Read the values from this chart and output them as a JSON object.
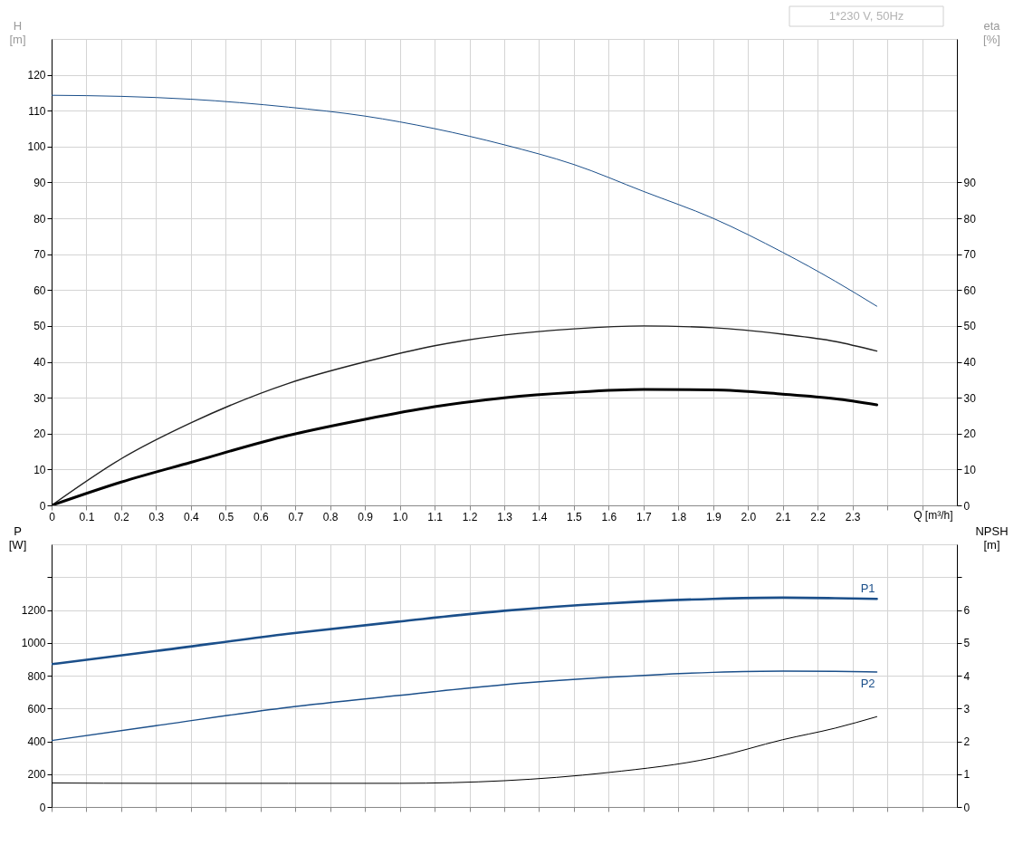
{
  "chart_data": [
    {
      "type": "line",
      "ylabel": "H [m]",
      "y2label": "eta [%]",
      "xlabel": "Q [m³/h]",
      "annotations": [
        "1*230 V, 50Hz"
      ],
      "grid": true,
      "x": [
        0,
        0.2,
        0.4,
        0.68,
        0.9,
        1.1,
        1.3,
        1.5,
        1.7,
        1.9,
        2.1,
        2.25,
        2.37
      ],
      "xlim": [
        0,
        2.6
      ],
      "xticks": [
        0,
        0.1,
        0.2,
        0.3,
        0.4,
        0.5,
        0.6,
        0.7,
        0.8,
        0.9,
        {
          "value": 1,
          "label": "1.0"
        },
        1.1,
        1.2,
        1.3,
        1.4,
        1.5,
        1.6,
        1.7,
        1.8,
        1.9,
        {
          "value": 2,
          "label": "2.0"
        },
        2.1,
        2.2,
        2.3,
        {
          "value": 2.4,
          "label": null
        },
        {
          "value": 2.5,
          "label": null
        }
      ],
      "ylim": [
        0,
        130
      ],
      "yticks": [
        0,
        10,
        20,
        30,
        40,
        50,
        60,
        70,
        80,
        90,
        100,
        110,
        120
      ],
      "y2lim": [
        0,
        130
      ],
      "y2ticks": [
        0,
        10,
        20,
        30,
        40,
        50,
        60,
        70,
        80,
        90
      ],
      "series": [
        {
          "color": "#1b4f8a",
          "values": [
            114.3,
            114,
            113.2,
            111,
            108.5,
            105,
            100.5,
            95,
            87.5,
            80,
            70.5,
            62.5,
            55.5
          ]
        },
        {
          "color": "#222222",
          "axis": "y2",
          "values": [
            0,
            13,
            23,
            34,
            40,
            44.5,
            47.5,
            49.2,
            50,
            49.5,
            47.7,
            45.7,
            43
          ]
        },
        {
          "color": "#000000",
          "axis": "y2",
          "values": [
            0,
            6.5,
            12,
            19.5,
            24,
            27.5,
            30,
            31.5,
            32.3,
            32.2,
            31,
            29.7,
            28
          ]
        }
      ]
    },
    {
      "type": "line",
      "ylabel": "P [W]",
      "y2label": "NPSH [m]",
      "grid": true,
      "tick_labels": "y",
      "x": [
        0,
        0.3,
        0.68,
        1.0,
        1.3,
        1.6,
        1.9,
        2.1,
        2.25,
        2.37
      ],
      "xlim": [
        0,
        2.6
      ],
      "xticks": [
        0,
        0.1,
        0.2,
        0.3,
        0.4,
        0.5,
        0.6,
        0.7,
        0.8,
        0.9,
        1.0,
        1.1,
        1.2,
        1.3,
        1.4,
        1.5,
        1.6,
        1.7,
        1.8,
        1.9,
        2.0,
        2.1,
        2.2,
        2.3,
        2.4,
        2.5
      ],
      "ylim": [
        0,
        1600
      ],
      "yticks": [
        0,
        200,
        400,
        600,
        800,
        1000,
        1200,
        {
          "value": 1400,
          "label": null
        }
      ],
      "y2lim": [
        0,
        8
      ],
      "y2ticks": [
        0,
        1,
        2,
        3,
        4,
        5,
        6,
        {
          "value": 7,
          "label": null
        }
      ],
      "series": [
        {
          "name": "P1",
          "color": "#1b4f8a",
          "values": [
            870,
            950,
            1055,
            1130,
            1195,
            1240,
            1268,
            1275,
            1272,
            1268
          ]
        },
        {
          "name": "P2",
          "color": "#1b4f8a",
          "values": [
            405,
            495,
            607,
            680,
            745,
            790,
            820,
            828,
            826,
            822
          ]
        },
        {
          "color": "#000000",
          "axis": "y2",
          "values": [
            0.73,
            0.72,
            0.72,
            0.72,
            0.8,
            1.05,
            1.5,
            2.05,
            2.4,
            2.75
          ]
        }
      ]
    }
  ]
}
